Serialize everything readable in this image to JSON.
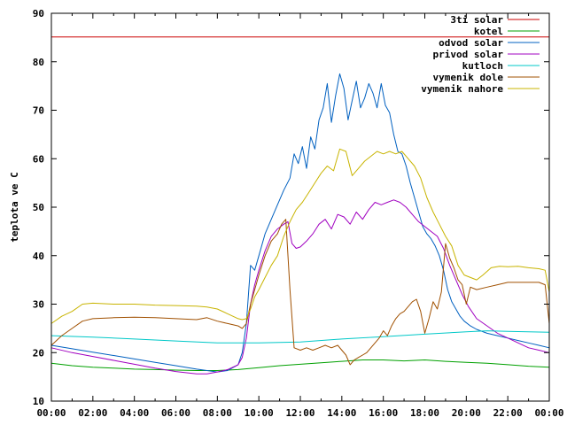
{
  "chart_data": {
    "type": "line",
    "title": "",
    "xlabel": "",
    "ylabel": "teplota ve C",
    "ylim": [
      10,
      90
    ],
    "xlim": [
      0,
      24
    ],
    "x_tick_labels": [
      "00:00",
      "02:00",
      "04:00",
      "06:00",
      "08:00",
      "10:00",
      "12:00",
      "14:00",
      "16:00",
      "18:00",
      "20:00",
      "22:00",
      "00:00"
    ],
    "y_ticks": [
      10,
      20,
      30,
      40,
      50,
      60,
      70,
      80,
      90
    ],
    "grid": false,
    "legend_position": "top-right",
    "series": [
      {
        "name": "3ti solar",
        "color": "#cc0000",
        "x": [
          0,
          24
        ],
        "values": [
          85.1,
          85.1
        ]
      },
      {
        "name": "kotel",
        "color": "#00a000",
        "x": [
          0,
          1,
          2,
          3,
          4,
          5,
          6,
          7,
          8,
          9,
          10,
          11,
          12,
          13,
          14,
          15,
          16,
          17,
          18,
          19,
          20,
          21,
          22,
          23,
          24
        ],
        "values": [
          17.8,
          17.3,
          17.0,
          16.8,
          16.6,
          16.5,
          16.4,
          16.3,
          16.3,
          16.5,
          16.9,
          17.3,
          17.6,
          17.9,
          18.2,
          18.5,
          18.5,
          18.3,
          18.5,
          18.2,
          18.0,
          17.8,
          17.5,
          17.2,
          17.0
        ]
      },
      {
        "name": "odvod solar",
        "color": "#0060c0",
        "x": [
          0,
          1,
          2,
          3,
          4,
          5,
          6,
          7,
          8,
          8.5,
          9,
          9.2,
          9.4,
          9.6,
          9.8,
          10,
          10.3,
          10.6,
          10.9,
          11.2,
          11.5,
          11.7,
          11.9,
          12.1,
          12.3,
          12.5,
          12.7,
          12.9,
          13.1,
          13.3,
          13.5,
          13.7,
          13.9,
          14.1,
          14.3,
          14.5,
          14.7,
          14.9,
          15.1,
          15.3,
          15.5,
          15.7,
          15.9,
          16.1,
          16.3,
          16.5,
          16.7,
          16.9,
          17.1,
          17.3,
          17.5,
          17.7,
          17.9,
          18.1,
          18.3,
          18.5,
          18.7,
          18.9,
          19.1,
          19.3,
          19.5,
          19.7,
          19.9,
          20.2,
          20.5,
          21,
          21.5,
          22,
          22.5,
          23,
          23.5,
          24
        ],
        "values": [
          21.5,
          20.8,
          20.1,
          19.4,
          18.7,
          18.0,
          17.3,
          16.6,
          16.0,
          16.3,
          17.5,
          20.0,
          26.0,
          38.0,
          37.0,
          40.0,
          44.5,
          47.5,
          50.5,
          53.5,
          56.0,
          61.0,
          59.0,
          62.5,
          58.0,
          64.5,
          62.0,
          68.0,
          70.5,
          75.5,
          67.5,
          73.0,
          77.5,
          74.5,
          68.0,
          72.0,
          76.0,
          70.5,
          72.5,
          75.5,
          73.5,
          70.5,
          75.5,
          71.0,
          69.5,
          65.0,
          61.5,
          61.0,
          58.5,
          55.0,
          52.0,
          49.0,
          46.0,
          44.5,
          43.5,
          42.0,
          40.0,
          37.0,
          33.0,
          30.5,
          29.0,
          27.5,
          26.5,
          25.5,
          24.8,
          24.0,
          23.5,
          23.0,
          22.5,
          22.0,
          21.5,
          21.0
        ]
      },
      {
        "name": "privod solar",
        "color": "#a000c0",
        "x": [
          0,
          1,
          2,
          3,
          4,
          5,
          6,
          7,
          7.5,
          8,
          8.5,
          9,
          9.2,
          9.4,
          9.6,
          9.8,
          10,
          10.3,
          10.6,
          10.9,
          11.2,
          11.4,
          11.6,
          11.8,
          12,
          12.3,
          12.6,
          12.9,
          13.2,
          13.5,
          13.8,
          14.1,
          14.4,
          14.7,
          15,
          15.3,
          15.6,
          15.9,
          16.2,
          16.5,
          16.8,
          17.1,
          17.4,
          17.7,
          18,
          18.3,
          18.6,
          18.9,
          19.2,
          19.5,
          19.8,
          20.1,
          20.5,
          21,
          21.5,
          22,
          22.5,
          23,
          23.5,
          24
        ],
        "values": [
          21.0,
          20.0,
          19.2,
          18.4,
          17.6,
          16.8,
          16.1,
          15.6,
          15.6,
          16.0,
          16.5,
          17.5,
          19.0,
          23.0,
          30.0,
          34.0,
          37.0,
          41.0,
          44.0,
          45.5,
          46.5,
          47.0,
          42.5,
          41.5,
          41.8,
          43.0,
          44.5,
          46.5,
          47.5,
          45.5,
          48.5,
          48.0,
          46.5,
          49.0,
          47.5,
          49.5,
          51.0,
          50.5,
          51.0,
          51.5,
          51.0,
          50.0,
          48.5,
          47.0,
          46.0,
          45.0,
          44.0,
          41.5,
          38.0,
          35.0,
          32.0,
          29.5,
          27.0,
          25.5,
          24.0,
          23.0,
          22.0,
          21.0,
          20.5,
          20.0
        ]
      },
      {
        "name": "kutloch",
        "color": "#00c8c8",
        "x": [
          0,
          2,
          4,
          6,
          8,
          10,
          12,
          14,
          16,
          18,
          20,
          21,
          22,
          23,
          24
        ],
        "values": [
          23.5,
          23.2,
          22.8,
          22.4,
          22.0,
          22.0,
          22.2,
          22.8,
          23.3,
          23.8,
          24.3,
          24.5,
          24.4,
          24.3,
          24.2
        ]
      },
      {
        "name": "vymenik dole",
        "color": "#a05000",
        "x": [
          0,
          0.5,
          1,
          1.5,
          2,
          3,
          4,
          5,
          6,
          7,
          7.5,
          8,
          8.5,
          9,
          9.2,
          9.4,
          9.6,
          9.8,
          10,
          10.3,
          10.6,
          10.9,
          11.1,
          11.3,
          11.5,
          11.7,
          12,
          12.3,
          12.6,
          12.9,
          13.2,
          13.5,
          13.8,
          14,
          14.2,
          14.4,
          14.6,
          14.8,
          15,
          15.2,
          15.4,
          15.6,
          15.8,
          16,
          16.2,
          16.4,
          16.6,
          16.8,
          17,
          17.2,
          17.4,
          17.6,
          17.8,
          18,
          18.2,
          18.4,
          18.6,
          18.8,
          19,
          19.2,
          19.4,
          19.6,
          19.8,
          20,
          20.2,
          20.5,
          21,
          21.5,
          22,
          22.5,
          23,
          23.5,
          23.8,
          24
        ],
        "values": [
          21.5,
          23.5,
          25.0,
          26.5,
          27.0,
          27.2,
          27.3,
          27.2,
          27.0,
          26.8,
          27.2,
          26.5,
          26.0,
          25.5,
          25.0,
          26.0,
          30.0,
          33.0,
          36.0,
          40.0,
          43.0,
          44.5,
          46.5,
          47.5,
          33.0,
          21.0,
          20.5,
          21.0,
          20.5,
          21.0,
          21.5,
          21.0,
          21.5,
          20.5,
          19.5,
          17.5,
          18.5,
          19.0,
          19.5,
          20.0,
          21.0,
          22.0,
          23.0,
          24.5,
          23.5,
          25.5,
          27.0,
          28.0,
          28.5,
          29.5,
          30.5,
          31.0,
          28.5,
          24.0,
          27.0,
          30.5,
          29.0,
          32.5,
          42.5,
          39.5,
          37.5,
          35.0,
          34.0,
          30.0,
          33.5,
          33.0,
          33.5,
          34.0,
          34.5,
          34.5,
          34.5,
          34.5,
          34.0,
          26.0
        ]
      },
      {
        "name": "vymenik nahore",
        "color": "#c8b400",
        "x": [
          0,
          0.5,
          1,
          1.5,
          2,
          3,
          4,
          5,
          6,
          7,
          7.5,
          8,
          8.5,
          9,
          9.2,
          9.4,
          9.6,
          9.8,
          10,
          10.3,
          10.6,
          10.9,
          11.2,
          11.5,
          11.8,
          12.1,
          12.4,
          12.7,
          13,
          13.3,
          13.6,
          13.9,
          14.2,
          14.5,
          14.8,
          15.1,
          15.4,
          15.7,
          16,
          16.3,
          16.6,
          16.9,
          17.2,
          17.5,
          17.8,
          18.1,
          18.4,
          18.7,
          19,
          19.3,
          19.6,
          19.9,
          20.2,
          20.5,
          20.8,
          21.2,
          21.6,
          22,
          22.5,
          23,
          23.5,
          23.8,
          24
        ],
        "values": [
          26.0,
          27.5,
          28.5,
          30.0,
          30.2,
          30.0,
          30.0,
          29.8,
          29.7,
          29.6,
          29.4,
          29.0,
          28.0,
          27.0,
          26.8,
          27.0,
          29.0,
          31.5,
          33.0,
          35.5,
          38.0,
          40.0,
          44.0,
          47.0,
          49.5,
          51.0,
          53.0,
          55.0,
          57.0,
          58.5,
          57.5,
          62.0,
          61.5,
          56.5,
          58.0,
          59.5,
          60.5,
          61.5,
          61.0,
          61.5,
          61.0,
          61.5,
          60.0,
          58.5,
          56.0,
          52.0,
          49.0,
          46.5,
          44.0,
          42.0,
          38.0,
          36.0,
          35.5,
          35.0,
          36.0,
          37.5,
          37.8,
          37.7,
          37.8,
          37.5,
          37.3,
          37.0,
          32.5
        ]
      }
    ]
  }
}
